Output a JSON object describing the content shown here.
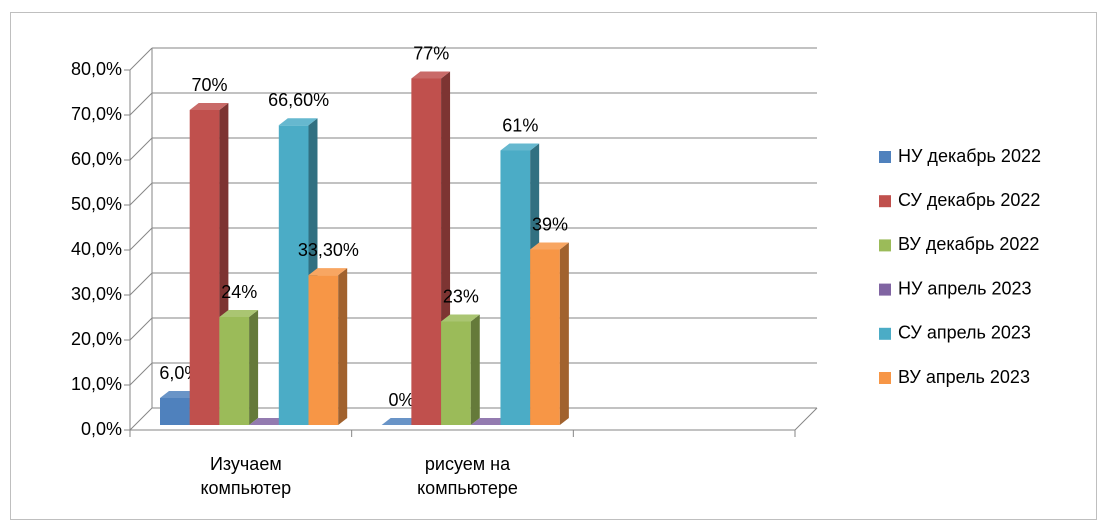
{
  "chart_data": {
    "type": "bar3d",
    "categories": [
      "Изучаем компьютер",
      "рисуем на компьютере",
      null
    ],
    "series": [
      {
        "name": "НУ декабрь 2022",
        "color": "#4f81bd",
        "values": [
          6.0,
          0,
          null
        ],
        "value_labels": [
          "6,0%",
          "0%",
          null
        ]
      },
      {
        "name": "СУ декабрь 2022",
        "color": "#c0504d",
        "values": [
          70,
          77,
          null
        ],
        "value_labels": [
          "70%",
          "77%",
          null
        ]
      },
      {
        "name": "ВУ декабрь 2022",
        "color": "#9bbb59",
        "values": [
          24,
          23,
          null
        ],
        "value_labels": [
          "24%",
          "23%",
          null
        ]
      },
      {
        "name": "НУ апрель 2023",
        "color": "#8064a2",
        "values": [
          0,
          0,
          null
        ]
      },
      {
        "name": "СУ апрель 2023",
        "color": "#4bacc6",
        "values": [
          66.6,
          61,
          null
        ],
        "value_labels": [
          "66,60%",
          "61%",
          null
        ]
      },
      {
        "name": "ВУ апрель 2023",
        "color": "#f79646",
        "values": [
          33.3,
          39,
          null
        ],
        "value_labels": [
          "33,30%",
          "39%",
          null
        ]
      }
    ],
    "ylim": [
      0,
      80
    ],
    "yticks": [
      {
        "value": 0,
        "label": "0,0%"
      },
      {
        "value": 10,
        "label": "10,0%"
      },
      {
        "value": 20,
        "label": "20,0%"
      },
      {
        "value": 30,
        "label": "30,0%"
      },
      {
        "value": 40,
        "label": "40,0%"
      },
      {
        "value": 50,
        "label": "50,0%"
      },
      {
        "value": 60,
        "label": "60,0%"
      },
      {
        "value": 70,
        "label": "70,0%"
      },
      {
        "value": 80,
        "label": "80,0%"
      }
    ],
    "grid": true,
    "legend": "right"
  }
}
